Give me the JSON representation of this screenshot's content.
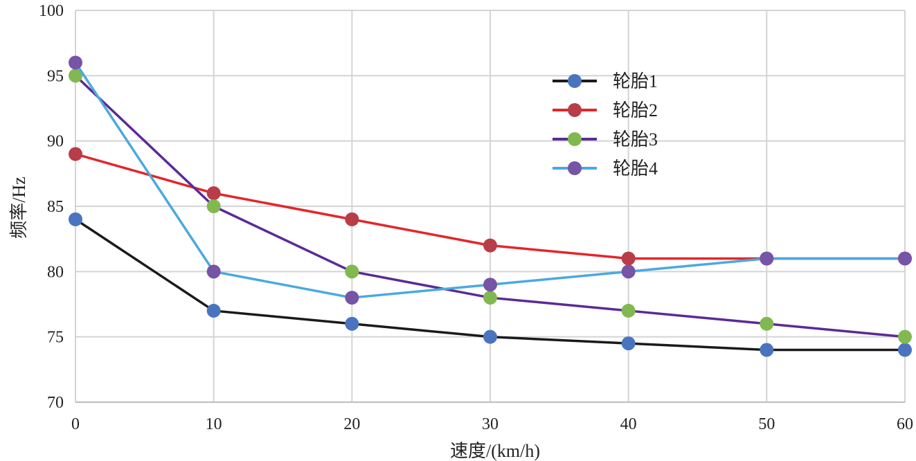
{
  "chart_data": {
    "type": "line",
    "title": "",
    "xlabel": "速度/(km/h)",
    "ylabel": "频率/Hz",
    "x": [
      0,
      10,
      20,
      30,
      40,
      50,
      60
    ],
    "xlim": [
      0,
      60
    ],
    "ylim": [
      70,
      100
    ],
    "xticks": [
      "0",
      "10",
      "20",
      "30",
      "40",
      "50",
      "60"
    ],
    "yticks": [
      "70",
      "75",
      "80",
      "85",
      "90",
      "95",
      "100"
    ],
    "grid": true,
    "legend_position": "top-right",
    "series": [
      {
        "name": "轮胎1",
        "line_color": "#1a1a1a",
        "marker_color": "#4a74be",
        "values": [
          84,
          77,
          76,
          75,
          74.5,
          74,
          74
        ]
      },
      {
        "name": "轮胎2",
        "line_color": "#e3262b",
        "marker_color": "#b83d48",
        "values": [
          89,
          86,
          84,
          82,
          81,
          81,
          81
        ]
      },
      {
        "name": "轮胎3",
        "line_color": "#5b2a96",
        "marker_color": "#82b850",
        "values": [
          95,
          85,
          80,
          78,
          77,
          76,
          75
        ]
      },
      {
        "name": "轮胎4",
        "line_color": "#4aa9e0",
        "marker_color": "#7654a6",
        "values": [
          96,
          80,
          78,
          79,
          80,
          81,
          81
        ]
      }
    ]
  }
}
